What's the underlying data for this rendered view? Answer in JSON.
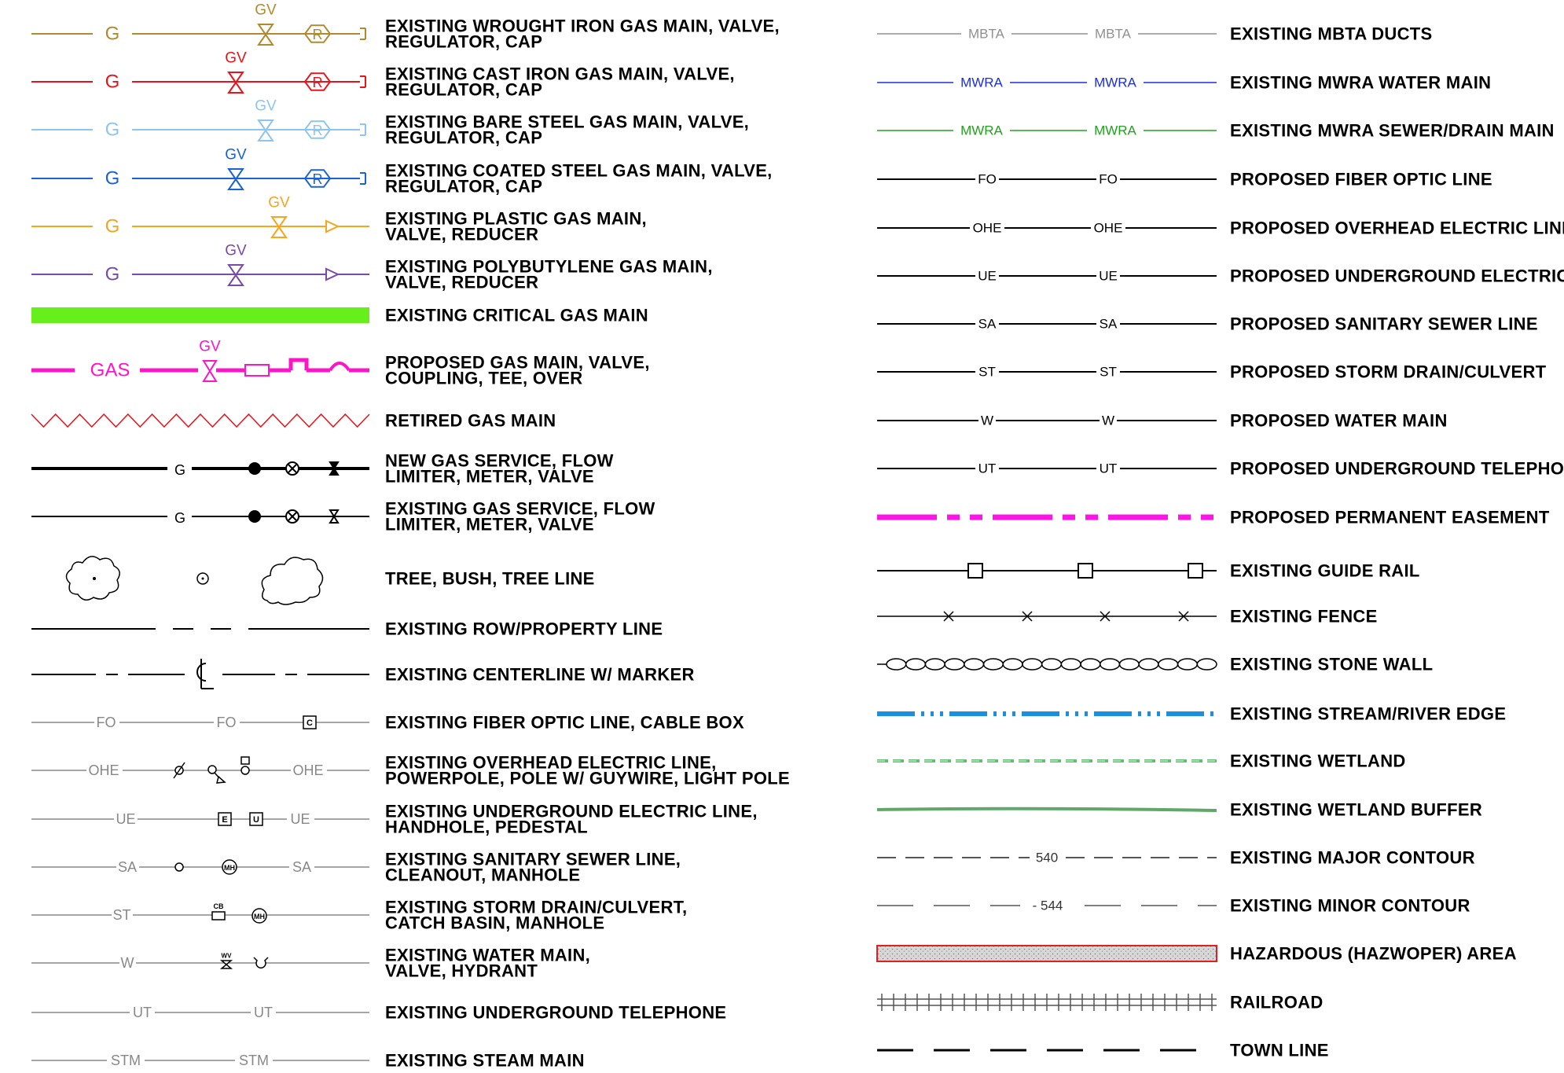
{
  "left": [
    {
      "id": "wi-gas",
      "label1": "EXISTING  WROUGHT  IRON  GAS  MAIN,  VALVE,",
      "label2": "REGULATOR,  CAP",
      "line_text": "G",
      "valve_text": "GV",
      "reg_text": "R",
      "color": "#b08a2e"
    },
    {
      "id": "ci-gas",
      "label1": "EXISTING  CAST  IRON  GAS  MAIN,  VALVE,",
      "label2": "REGULATOR,  CAP",
      "line_text": "G",
      "valve_text": "GV",
      "reg_text": "R",
      "color": "#e8141c"
    },
    {
      "id": "bs-gas",
      "label1": "EXISTING  BARE  STEEL  GAS  MAIN,  VALVE,",
      "label2": "REGULATOR,  CAP",
      "line_text": "G",
      "valve_text": "GV",
      "reg_text": "R",
      "color": "#8ec5f0"
    },
    {
      "id": "cs-gas",
      "label1": "EXISTING  COATED  STEEL  GAS  MAIN,  VALVE,",
      "label2": "REGULATOR,  CAP",
      "line_text": "G",
      "valve_text": "GV",
      "reg_text": "R",
      "color": "#1a63d6"
    },
    {
      "id": "pl-gas",
      "label1": "EXISTING  PLASTIC  GAS  MAIN,",
      "label2": "VALVE,  REDUCER",
      "line_text": "G",
      "valve_text": "GV",
      "color": "#f5a51e"
    },
    {
      "id": "pb-gas",
      "label1": "EXISTING  POLYBUTYLENE  GAS  MAIN,",
      "label2": "VALVE,  REDUCER",
      "line_text": "G",
      "valve_text": "GV",
      "color": "#7a4aa8"
    },
    {
      "id": "crit-gas",
      "label1": "EXISTING  CRITICAL  GAS  MAIN",
      "color": "#66ef1a"
    },
    {
      "id": "prop-gas",
      "label1": "PROPOSED  GAS  MAIN,  VALVE,",
      "label2": "COUPLING,  TEE,  OVER",
      "line_text": "GAS",
      "valve_text": "GV",
      "color": "#ff14c8"
    },
    {
      "id": "retired-gas",
      "label1": "RETIRED  GAS  MAIN",
      "color": "#e8141c"
    },
    {
      "id": "new-svc",
      "label1": "NEW  GAS  SERVICE,  FLOW",
      "label2": "LIMITER,  METER,  VALVE",
      "line_text": "G"
    },
    {
      "id": "exist-svc",
      "label1": "EXISTING  GAS  SERVICE,  FLOW",
      "label2": "LIMITER,  METER,  VALVE",
      "line_text": "G"
    },
    {
      "id": "tree",
      "label1": "TREE,  BUSH,  TREE  LINE"
    },
    {
      "id": "row",
      "label1": "EXISTING  ROW/PROPERTY  LINE"
    },
    {
      "id": "centerline",
      "label1": "EXISTING  CENTERLINE  W/  MARKER"
    },
    {
      "id": "fo",
      "label1": "EXISTING  FIBER  OPTIC  LINE,  CABLE  BOX",
      "line_text": "FO",
      "box_text": "C"
    },
    {
      "id": "ohe",
      "label1": "EXISTING  OVERHEAD  ELECTRIC  LINE,",
      "label2": "POWERPOLE,  POLE  W/  GUYWIRE,  LIGHT  POLE",
      "line_text": "OHE"
    },
    {
      "id": "ue",
      "label1": "EXISTING  UNDERGROUND  ELECTRIC  LINE,",
      "label2": "HANDHOLE,  PEDESTAL",
      "line_text": "UE",
      "box1_text": "E",
      "box2_text": "U"
    },
    {
      "id": "sa",
      "label1": "EXISTING  SANITARY  SEWER  LINE,",
      "label2": "CLEANOUT,  MANHOLE",
      "line_text": "SA",
      "mh_text": "MH"
    },
    {
      "id": "st",
      "label1": "EXISTING  STORM  DRAIN/CULVERT,",
      "label2": "CATCH  BASIN,  MANHOLE",
      "line_text": "ST",
      "cb_text": "CB",
      "mh_text": "MH"
    },
    {
      "id": "w",
      "label1": "EXISTING  WATER  MAIN,",
      "label2": "VALVE,  HYDRANT",
      "line_text": "W",
      "wv_text": "WV"
    },
    {
      "id": "ut",
      "label1": "EXISTING  UNDERGROUND  TELEPHONE",
      "line_text": "UT"
    },
    {
      "id": "stm",
      "label1": "EXISTING  STEAM  MAIN",
      "line_text": "STM"
    }
  ],
  "right": [
    {
      "id": "mbta",
      "label": "EXISTING  MBTA  DUCTS",
      "line_text": "MBTA",
      "color": "#909090"
    },
    {
      "id": "mwra-water",
      "label": "EXISTING  MWRA  WATER  MAIN",
      "line_text": "MWRA",
      "color": "#1a2ee0"
    },
    {
      "id": "mwra-sewer",
      "label": "EXISTING  MWRA  SEWER/DRAIN  MAIN",
      "line_text": "MWRA",
      "color": "#22a020"
    },
    {
      "id": "p-fo",
      "label": "PROPOSED  FIBER  OPTIC  LINE",
      "line_text": "FO"
    },
    {
      "id": "p-ohe",
      "label": "PROPOSED  OVERHEAD  ELECTRIC  LINE",
      "line_text": "OHE"
    },
    {
      "id": "p-ue",
      "label": "PROPOSED  UNDERGROUND  ELECTRIC  LINE",
      "line_text": "UE"
    },
    {
      "id": "p-sa",
      "label": "PROPOSED  SANITARY  SEWER  LINE",
      "line_text": "SA"
    },
    {
      "id": "p-st",
      "label": "PROPOSED  STORM  DRAIN/CULVERT",
      "line_text": "ST"
    },
    {
      "id": "p-w",
      "label": "PROPOSED  WATER  MAIN",
      "line_text": "W"
    },
    {
      "id": "p-ut",
      "label": "PROPOSED  UNDERGROUND  TELEPHONE",
      "line_text": "UT"
    },
    {
      "id": "easement",
      "label": "PROPOSED  PERMANENT  EASEMENT",
      "color": "#ff14e6"
    },
    {
      "id": "guide-rail",
      "label": "EXISTING  GUIDE  RAIL"
    },
    {
      "id": "fence",
      "label": "EXISTING  FENCE"
    },
    {
      "id": "stone-wall",
      "label": "EXISTING  STONE  WALL"
    },
    {
      "id": "stream",
      "label": "EXISTING  STREAM/RIVER  EDGE",
      "color": "#1a8fe0"
    },
    {
      "id": "wetland",
      "label": "EXISTING  WETLAND",
      "color": "#5fbf73"
    },
    {
      "id": "wetland-buffer",
      "label": "EXISTING  WETLAND  BUFFER",
      "color": "#5fa86a"
    },
    {
      "id": "major-contour",
      "label": "EXISTING  MAJOR  CONTOUR",
      "line_text": "540"
    },
    {
      "id": "minor-contour",
      "label": "EXISTING  MINOR  CONTOUR",
      "line_text": "544"
    },
    {
      "id": "hazwoper",
      "label": "HAZARDOUS  (HAZWOPER)  AREA",
      "color": "#e02020"
    },
    {
      "id": "railroad",
      "label": "RAILROAD"
    },
    {
      "id": "town-line",
      "label": "TOWN  LINE"
    }
  ]
}
